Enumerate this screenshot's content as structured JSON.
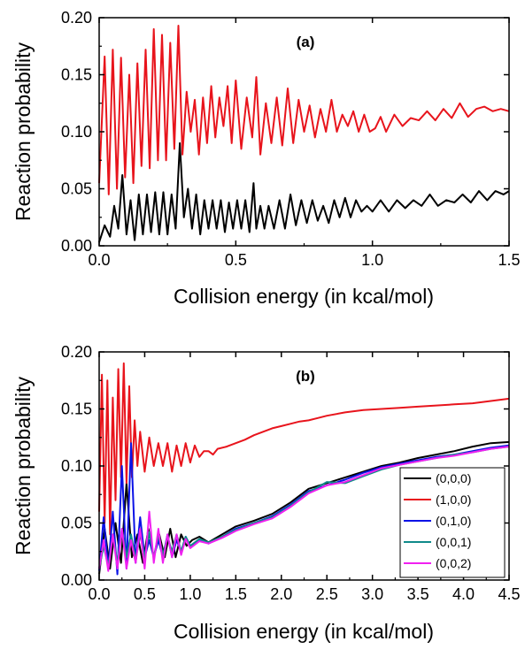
{
  "chart_data": [
    {
      "type": "line",
      "panel_label": "(a)",
      "xlabel": "Collision energy (in kcal/mol)",
      "ylabel": "Reaction probability",
      "xlim": [
        0.0,
        1.5
      ],
      "ylim": [
        0.0,
        0.2
      ],
      "xticks": [
        "0.0",
        "0.5",
        "1.0",
        "1.5"
      ],
      "yticks": [
        "0.00",
        "0.05",
        "0.10",
        "0.15",
        "0.20"
      ],
      "grid": false,
      "series": [
        {
          "color": "#e8141c",
          "x": [
            0.0,
            0.02,
            0.035,
            0.05,
            0.065,
            0.08,
            0.095,
            0.11,
            0.125,
            0.14,
            0.155,
            0.17,
            0.185,
            0.2,
            0.215,
            0.23,
            0.245,
            0.26,
            0.275,
            0.29,
            0.305,
            0.32,
            0.335,
            0.35,
            0.365,
            0.38,
            0.395,
            0.41,
            0.425,
            0.44,
            0.455,
            0.47,
            0.485,
            0.5,
            0.52,
            0.54,
            0.56,
            0.575,
            0.59,
            0.61,
            0.63,
            0.65,
            0.67,
            0.69,
            0.71,
            0.73,
            0.75,
            0.77,
            0.79,
            0.81,
            0.83,
            0.85,
            0.87,
            0.89,
            0.91,
            0.93,
            0.95,
            0.97,
            0.99,
            1.01,
            1.03,
            1.05,
            1.08,
            1.11,
            1.14,
            1.17,
            1.2,
            1.23,
            1.26,
            1.29,
            1.32,
            1.35,
            1.38,
            1.41,
            1.44,
            1.47,
            1.5
          ],
          "y": [
            0.055,
            0.166,
            0.045,
            0.172,
            0.05,
            0.165,
            0.06,
            0.15,
            0.055,
            0.16,
            0.07,
            0.172,
            0.068,
            0.19,
            0.075,
            0.185,
            0.075,
            0.178,
            0.085,
            0.193,
            0.08,
            0.135,
            0.1,
            0.128,
            0.08,
            0.13,
            0.09,
            0.14,
            0.095,
            0.13,
            0.105,
            0.14,
            0.09,
            0.145,
            0.085,
            0.13,
            0.095,
            0.148,
            0.08,
            0.125,
            0.09,
            0.13,
            0.088,
            0.138,
            0.09,
            0.128,
            0.1,
            0.123,
            0.095,
            0.12,
            0.1,
            0.128,
            0.1,
            0.115,
            0.105,
            0.118,
            0.1,
            0.115,
            0.1,
            0.103,
            0.113,
            0.1,
            0.115,
            0.105,
            0.112,
            0.11,
            0.118,
            0.11,
            0.12,
            0.112,
            0.125,
            0.113,
            0.12,
            0.122,
            0.118,
            0.12,
            0.118
          ]
        },
        {
          "color": "#000000",
          "x": [
            0.0,
            0.02,
            0.04,
            0.055,
            0.07,
            0.085,
            0.1,
            0.115,
            0.13,
            0.145,
            0.16,
            0.175,
            0.19,
            0.205,
            0.22,
            0.235,
            0.25,
            0.265,
            0.28,
            0.295,
            0.31,
            0.325,
            0.34,
            0.355,
            0.37,
            0.385,
            0.4,
            0.415,
            0.43,
            0.445,
            0.46,
            0.475,
            0.49,
            0.505,
            0.52,
            0.535,
            0.55,
            0.565,
            0.575,
            0.59,
            0.605,
            0.62,
            0.64,
            0.66,
            0.68,
            0.7,
            0.72,
            0.74,
            0.76,
            0.78,
            0.8,
            0.82,
            0.84,
            0.86,
            0.88,
            0.9,
            0.92,
            0.94,
            0.96,
            0.98,
            1.0,
            1.03,
            1.06,
            1.09,
            1.12,
            1.15,
            1.18,
            1.21,
            1.24,
            1.27,
            1.3,
            1.33,
            1.36,
            1.39,
            1.42,
            1.45,
            1.48,
            1.5
          ],
          "y": [
            0.003,
            0.018,
            0.008,
            0.035,
            0.015,
            0.062,
            0.01,
            0.04,
            0.005,
            0.045,
            0.01,
            0.045,
            0.012,
            0.047,
            0.01,
            0.047,
            0.01,
            0.045,
            0.015,
            0.09,
            0.025,
            0.05,
            0.015,
            0.045,
            0.01,
            0.04,
            0.015,
            0.04,
            0.015,
            0.04,
            0.012,
            0.038,
            0.015,
            0.04,
            0.015,
            0.04,
            0.012,
            0.055,
            0.015,
            0.035,
            0.015,
            0.035,
            0.015,
            0.04,
            0.015,
            0.045,
            0.018,
            0.04,
            0.02,
            0.04,
            0.022,
            0.035,
            0.02,
            0.04,
            0.025,
            0.042,
            0.025,
            0.04,
            0.03,
            0.035,
            0.03,
            0.04,
            0.03,
            0.04,
            0.033,
            0.04,
            0.035,
            0.045,
            0.035,
            0.04,
            0.038,
            0.045,
            0.038,
            0.048,
            0.04,
            0.048,
            0.045,
            0.048
          ]
        }
      ]
    },
    {
      "type": "line",
      "panel_label": "(b)",
      "xlabel": "Collision energy (in kcal/mol)",
      "ylabel": "Reaction probability",
      "xlim": [
        0.0,
        4.5
      ],
      "ylim": [
        0.0,
        0.2
      ],
      "xticks": [
        "0.0",
        "0.5",
        "1.0",
        "1.5",
        "2.0",
        "2.5",
        "3.0",
        "3.5",
        "4.0",
        "4.5"
      ],
      "yticks": [
        "0.00",
        "0.05",
        "0.10",
        "0.15",
        "0.20"
      ],
      "grid": false,
      "legend_position": "bottom-right",
      "series": [
        {
          "name": "(0,0,0)",
          "color": "#000000",
          "x": [
            0.0,
            0.06,
            0.12,
            0.18,
            0.24,
            0.3,
            0.36,
            0.42,
            0.48,
            0.54,
            0.6,
            0.66,
            0.72,
            0.78,
            0.84,
            0.9,
            0.96,
            1.02,
            1.1,
            1.2,
            1.35,
            1.5,
            1.7,
            1.9,
            2.1,
            2.3,
            2.5,
            2.7,
            2.9,
            3.1,
            3.3,
            3.5,
            3.7,
            3.9,
            4.1,
            4.3,
            4.5
          ],
          "y": [
            0.005,
            0.045,
            0.01,
            0.05,
            0.015,
            0.085,
            0.02,
            0.04,
            0.015,
            0.045,
            0.02,
            0.04,
            0.02,
            0.045,
            0.02,
            0.04,
            0.03,
            0.035,
            0.038,
            0.033,
            0.04,
            0.047,
            0.052,
            0.058,
            0.068,
            0.08,
            0.085,
            0.09,
            0.095,
            0.1,
            0.103,
            0.107,
            0.11,
            0.113,
            0.117,
            0.12,
            0.121
          ]
        },
        {
          "name": "(1,0,0)",
          "color": "#e8141c",
          "x": [
            0.0,
            0.03,
            0.06,
            0.09,
            0.12,
            0.15,
            0.18,
            0.21,
            0.24,
            0.27,
            0.3,
            0.33,
            0.36,
            0.39,
            0.42,
            0.45,
            0.5,
            0.55,
            0.6,
            0.65,
            0.7,
            0.75,
            0.8,
            0.85,
            0.9,
            0.95,
            1.0,
            1.05,
            1.1,
            1.15,
            1.2,
            1.25,
            1.3,
            1.4,
            1.5,
            1.6,
            1.7,
            1.8,
            1.9,
            2.0,
            2.1,
            2.2,
            2.3,
            2.4,
            2.5,
            2.7,
            2.9,
            3.1,
            3.3,
            3.5,
            3.7,
            3.9,
            4.1,
            4.3,
            4.5
          ],
          "y": [
            0.06,
            0.18,
            0.05,
            0.175,
            0.04,
            0.16,
            0.07,
            0.185,
            0.09,
            0.19,
            0.085,
            0.17,
            0.09,
            0.14,
            0.1,
            0.13,
            0.095,
            0.125,
            0.1,
            0.12,
            0.1,
            0.12,
            0.095,
            0.118,
            0.1,
            0.12,
            0.103,
            0.118,
            0.108,
            0.113,
            0.113,
            0.11,
            0.115,
            0.117,
            0.12,
            0.123,
            0.127,
            0.13,
            0.133,
            0.135,
            0.137,
            0.139,
            0.14,
            0.142,
            0.144,
            0.147,
            0.149,
            0.15,
            0.151,
            0.152,
            0.153,
            0.154,
            0.155,
            0.157,
            0.159
          ]
        },
        {
          "name": "(0,1,0)",
          "color": "#0a12e6",
          "x": [
            0.0,
            0.05,
            0.1,
            0.15,
            0.2,
            0.25,
            0.3,
            0.35,
            0.4,
            0.45,
            0.5,
            0.55,
            0.6,
            0.65,
            0.7,
            0.75,
            0.8,
            0.85,
            0.9,
            0.95,
            1.0,
            1.1,
            1.2,
            1.35,
            1.5,
            1.7,
            1.9,
            2.1,
            2.3,
            2.5,
            2.7,
            2.9,
            3.1,
            3.3,
            3.5,
            3.7,
            3.9,
            4.1,
            4.3,
            4.5
          ],
          "y": [
            0.008,
            0.055,
            0.01,
            0.06,
            0.005,
            0.1,
            0.01,
            0.12,
            0.015,
            0.055,
            0.02,
            0.035,
            0.02,
            0.035,
            0.02,
            0.04,
            0.02,
            0.035,
            0.025,
            0.038,
            0.03,
            0.035,
            0.032,
            0.038,
            0.045,
            0.05,
            0.056,
            0.066,
            0.078,
            0.083,
            0.088,
            0.094,
            0.099,
            0.102,
            0.105,
            0.108,
            0.11,
            0.113,
            0.116,
            0.118
          ]
        },
        {
          "name": "(0,0,1)",
          "color": "#108a8a",
          "x": [
            0.0,
            0.05,
            0.1,
            0.15,
            0.2,
            0.25,
            0.3,
            0.35,
            0.4,
            0.45,
            0.5,
            0.55,
            0.6,
            0.65,
            0.7,
            0.75,
            0.8,
            0.85,
            0.9,
            0.95,
            1.0,
            1.1,
            1.2,
            1.35,
            1.5,
            1.7,
            1.9,
            2.1,
            2.3,
            2.5,
            2.7,
            2.9,
            3.1,
            3.3,
            3.5,
            3.7,
            3.9,
            4.1,
            4.3,
            4.5
          ],
          "y": [
            0.01,
            0.03,
            0.012,
            0.04,
            0.015,
            0.045,
            0.02,
            0.04,
            0.018,
            0.04,
            0.02,
            0.042,
            0.02,
            0.04,
            0.022,
            0.038,
            0.025,
            0.04,
            0.025,
            0.038,
            0.03,
            0.036,
            0.033,
            0.038,
            0.044,
            0.05,
            0.055,
            0.065,
            0.077,
            0.086,
            0.085,
            0.091,
            0.097,
            0.101,
            0.104,
            0.107,
            0.11,
            0.112,
            0.115,
            0.117
          ]
        },
        {
          "name": "(0,0,2)",
          "color": "#f020f0",
          "x": [
            0.0,
            0.05,
            0.1,
            0.15,
            0.2,
            0.25,
            0.3,
            0.35,
            0.4,
            0.45,
            0.5,
            0.55,
            0.6,
            0.65,
            0.7,
            0.75,
            0.8,
            0.85,
            0.9,
            0.95,
            1.0,
            1.1,
            1.2,
            1.35,
            1.5,
            1.7,
            1.9,
            2.1,
            2.3,
            2.5,
            2.7,
            2.9,
            3.1,
            3.3,
            3.5,
            3.7,
            3.9,
            4.1,
            4.3,
            4.5
          ],
          "y": [
            0.01,
            0.035,
            0.008,
            0.04,
            0.01,
            0.045,
            0.01,
            0.035,
            0.015,
            0.045,
            0.01,
            0.06,
            0.015,
            0.045,
            0.015,
            0.04,
            0.02,
            0.04,
            0.022,
            0.036,
            0.028,
            0.034,
            0.032,
            0.037,
            0.043,
            0.049,
            0.054,
            0.064,
            0.076,
            0.083,
            0.086,
            0.092,
            0.098,
            0.101,
            0.104,
            0.107,
            0.109,
            0.112,
            0.115,
            0.117
          ]
        }
      ]
    }
  ]
}
